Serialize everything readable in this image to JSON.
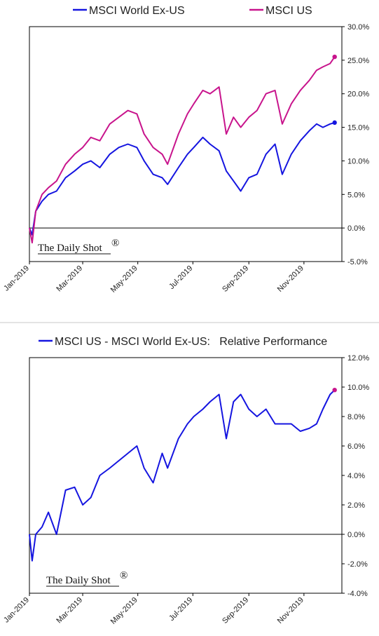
{
  "colors": {
    "world_ex_us": "#1515e0",
    "us": "#c8148c",
    "axis": "#000000",
    "zero_line": "#000000"
  },
  "watermark": "The Daily Shot",
  "watermark_mark": "®",
  "chart_data": [
    {
      "type": "line",
      "legend": [
        "MSCI World Ex-US",
        "MSCI US"
      ],
      "legend_position": "top",
      "ylim": [
        -5,
        30
      ],
      "yticks": [
        "30.0%",
        "25.0%",
        "20.0%",
        "15.0%",
        "10.0%",
        "5.0%",
        "0.0%",
        "-5.0%"
      ],
      "xticks": [
        "Jan-2019",
        "Mar-2019",
        "May-2019",
        "Jul-2019",
        "Sep-2019",
        "Nov-2019"
      ],
      "grid": false,
      "series": [
        {
          "name": "MSCI World Ex-US",
          "x": [
            "2019-01-01",
            "2019-01-04",
            "2019-01-08",
            "2019-01-15",
            "2019-01-22",
            "2019-01-31",
            "2019-02-10",
            "2019-02-20",
            "2019-03-01",
            "2019-03-10",
            "2019-03-20",
            "2019-03-31",
            "2019-04-10",
            "2019-04-20",
            "2019-04-30",
            "2019-05-08",
            "2019-05-18",
            "2019-05-28",
            "2019-06-03",
            "2019-06-15",
            "2019-06-25",
            "2019-07-02",
            "2019-07-12",
            "2019-07-20",
            "2019-07-30",
            "2019-08-07",
            "2019-08-15",
            "2019-08-23",
            "2019-09-01",
            "2019-09-10",
            "2019-09-20",
            "2019-09-30",
            "2019-10-08",
            "2019-10-18",
            "2019-10-28",
            "2019-11-07",
            "2019-11-15",
            "2019-11-22",
            "2019-11-30",
            "2019-12-05"
          ],
          "values": [
            0.0,
            -1.0,
            2.5,
            4.0,
            5.0,
            5.5,
            7.5,
            8.5,
            9.5,
            10.0,
            9.0,
            11.0,
            12.0,
            12.5,
            12.0,
            10.0,
            8.0,
            7.5,
            6.5,
            9.0,
            11.0,
            12.0,
            13.5,
            12.5,
            11.5,
            8.5,
            7.0,
            5.5,
            7.5,
            8.0,
            11.0,
            12.5,
            8.0,
            11.0,
            13.0,
            14.5,
            15.5,
            15.0,
            15.5,
            15.7
          ]
        },
        {
          "name": "MSCI US",
          "x": [
            "2019-01-01",
            "2019-01-04",
            "2019-01-08",
            "2019-01-15",
            "2019-01-22",
            "2019-01-31",
            "2019-02-10",
            "2019-02-20",
            "2019-03-01",
            "2019-03-10",
            "2019-03-20",
            "2019-03-31",
            "2019-04-10",
            "2019-04-20",
            "2019-04-30",
            "2019-05-08",
            "2019-05-18",
            "2019-05-28",
            "2019-06-03",
            "2019-06-15",
            "2019-06-25",
            "2019-07-02",
            "2019-07-12",
            "2019-07-20",
            "2019-07-30",
            "2019-08-07",
            "2019-08-15",
            "2019-08-23",
            "2019-09-01",
            "2019-09-10",
            "2019-09-20",
            "2019-09-30",
            "2019-10-08",
            "2019-10-18",
            "2019-10-28",
            "2019-11-07",
            "2019-11-15",
            "2019-11-22",
            "2019-11-30",
            "2019-12-05"
          ],
          "values": [
            0.0,
            -2.2,
            2.5,
            5.0,
            6.0,
            7.0,
            9.5,
            11.0,
            12.0,
            13.5,
            13.0,
            15.5,
            16.5,
            17.5,
            17.0,
            14.0,
            12.0,
            11.0,
            9.5,
            14.0,
            17.0,
            18.5,
            20.5,
            20.0,
            21.0,
            14.0,
            16.5,
            15.0,
            16.5,
            17.5,
            20.0,
            20.5,
            15.5,
            18.5,
            20.5,
            22.0,
            23.5,
            24.0,
            24.5,
            25.5
          ]
        }
      ]
    },
    {
      "type": "line",
      "legend": [
        "MSCI US - MSCI World Ex-US:   Relative Performance"
      ],
      "legend_position": "top",
      "ylim": [
        -4,
        12
      ],
      "yticks": [
        "12.0%",
        "10.0%",
        "8.0%",
        "6.0%",
        "4.0%",
        "2.0%",
        "0.0%",
        "-2.0%",
        "-4.0%"
      ],
      "xticks": [
        "Jan-2019",
        "Mar-2019",
        "May-2019",
        "Jul-2019",
        "Sep-2019",
        "Nov-2019"
      ],
      "grid": false,
      "series": [
        {
          "name": "MSCI US - MSCI World Ex-US:   Relative Performance",
          "x": [
            "2019-01-01",
            "2019-01-04",
            "2019-01-08",
            "2019-01-15",
            "2019-01-22",
            "2019-01-31",
            "2019-02-10",
            "2019-02-20",
            "2019-03-01",
            "2019-03-10",
            "2019-03-20",
            "2019-03-31",
            "2019-04-10",
            "2019-04-20",
            "2019-04-30",
            "2019-05-08",
            "2019-05-18",
            "2019-05-28",
            "2019-06-03",
            "2019-06-15",
            "2019-06-25",
            "2019-07-02",
            "2019-07-12",
            "2019-07-20",
            "2019-07-30",
            "2019-08-07",
            "2019-08-15",
            "2019-08-23",
            "2019-09-01",
            "2019-09-10",
            "2019-09-20",
            "2019-09-30",
            "2019-10-08",
            "2019-10-18",
            "2019-10-28",
            "2019-11-07",
            "2019-11-15",
            "2019-11-22",
            "2019-11-30",
            "2019-12-05"
          ],
          "values": [
            0.0,
            -1.8,
            0.0,
            0.5,
            1.5,
            0.0,
            3.0,
            3.2,
            2.0,
            2.5,
            4.0,
            4.5,
            5.0,
            5.5,
            6.0,
            4.5,
            3.5,
            5.5,
            4.5,
            6.5,
            7.5,
            8.0,
            8.5,
            9.0,
            9.5,
            6.5,
            9.0,
            9.5,
            8.5,
            8.0,
            8.5,
            7.5,
            7.5,
            7.5,
            7.0,
            7.2,
            7.5,
            8.5,
            9.5,
            9.8
          ]
        }
      ]
    }
  ]
}
